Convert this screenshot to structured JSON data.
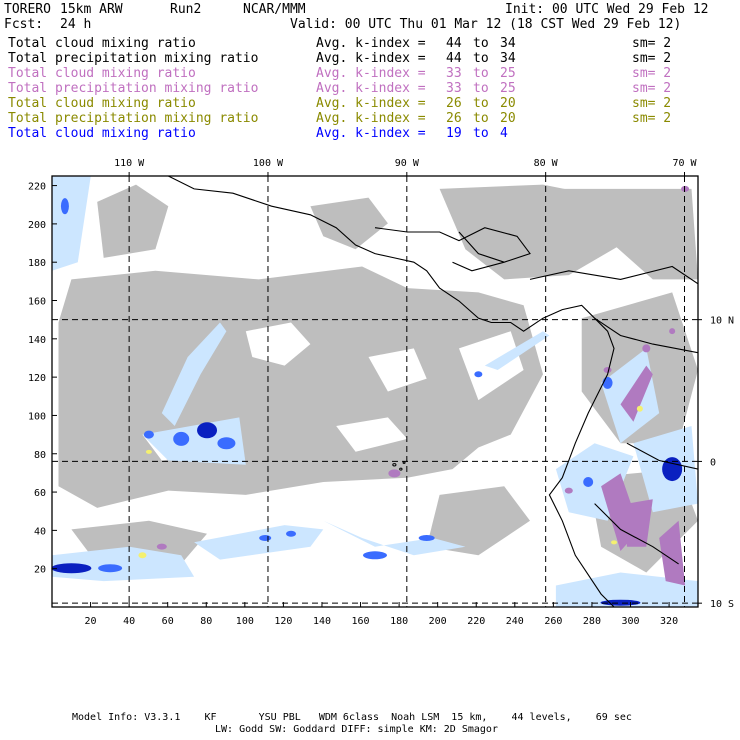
{
  "header": {
    "model": "TORERO",
    "resolution": "15km ARW",
    "run": "Run2",
    "org": "NCAR/MMM",
    "init": "Init: 00 UTC Wed 29 Feb 12",
    "fcst_label": "Fcst:",
    "fcst_value": "24 h",
    "valid": "Valid: 00 UTC Thu 01 Mar 12 (18 CST Wed 29 Feb 12)"
  },
  "legend": [
    {
      "field": "Total cloud mixing ratio",
      "avg": "Avg. k-index =",
      "k1": "44",
      "to": "to",
      "k2": "34",
      "sm": "sm= 2",
      "color": "#000000"
    },
    {
      "field": "Total precipitation mixing ratio",
      "avg": "Avg. k-index =",
      "k1": "44",
      "to": "to",
      "k2": "34",
      "sm": "sm= 2",
      "color": "#000000"
    },
    {
      "field": "Total cloud mixing ratio",
      "avg": "Avg. k-index =",
      "k1": "33",
      "to": "to",
      "k2": "25",
      "sm": "sm= 2",
      "color": "#c070c0"
    },
    {
      "field": "Total precipitation mixing ratio",
      "avg": "Avg. k-index =",
      "k1": "33",
      "to": "to",
      "k2": "25",
      "sm": "sm= 2",
      "color": "#c070c0"
    },
    {
      "field": "Total cloud mixing ratio",
      "avg": "Avg. k-index =",
      "k1": "26",
      "to": "to",
      "k2": "20",
      "sm": "sm= 2",
      "color": "#8a8a00"
    },
    {
      "field": "Total precipitation mixing ratio",
      "avg": "Avg. k-index =",
      "k1": "26",
      "to": "to",
      "k2": "20",
      "sm": "sm= 2",
      "color": "#8a8a00"
    },
    {
      "field": "Total cloud mixing ratio",
      "avg": "Avg. k-index =",
      "k1": "19",
      "to": "to",
      "k2": "4",
      "sm": "",
      "color": "#0000ff"
    }
  ],
  "map": {
    "grid_x_min": 0,
    "grid_x_max": 335,
    "grid_y_min": 0,
    "grid_y_max": 225,
    "x_ticks": [
      20,
      40,
      60,
      80,
      100,
      120,
      140,
      160,
      180,
      200,
      220,
      240,
      260,
      280,
      300,
      320
    ],
    "y_ticks": [
      20,
      40,
      60,
      80,
      100,
      120,
      140,
      160,
      180,
      200,
      220
    ],
    "lon_labels": [
      {
        "text": "110 W",
        "x": 40
      },
      {
        "text": "100 W",
        "x": 112
      },
      {
        "text": "90 W",
        "x": 184
      },
      {
        "text": "80 W",
        "x": 256
      },
      {
        "text": "70 W",
        "x": 328
      }
    ],
    "lat_labels": [
      {
        "text": "10 N",
        "y": 150
      },
      {
        "text": "0",
        "y": 76
      },
      {
        "text": "10 S",
        "y": 2
      }
    ],
    "colors": {
      "cloud": "#bebebe",
      "precip_light": "#cce6ff",
      "precip_mid": "#3a6cff",
      "precip_heavy": "#0a20c0",
      "purple": "#b07ac0",
      "yellow": "#f4f070",
      "coast": "#000000"
    }
  },
  "footer": {
    "line1": "Model Info: V3.3.1    KF       YSU PBL   WDM 6class  Noah LSM  15 km,    44 levels,    69 sec",
    "line2": "LW: Godd SW: Goddard DIFF: simple KM: 2D Smagor"
  }
}
